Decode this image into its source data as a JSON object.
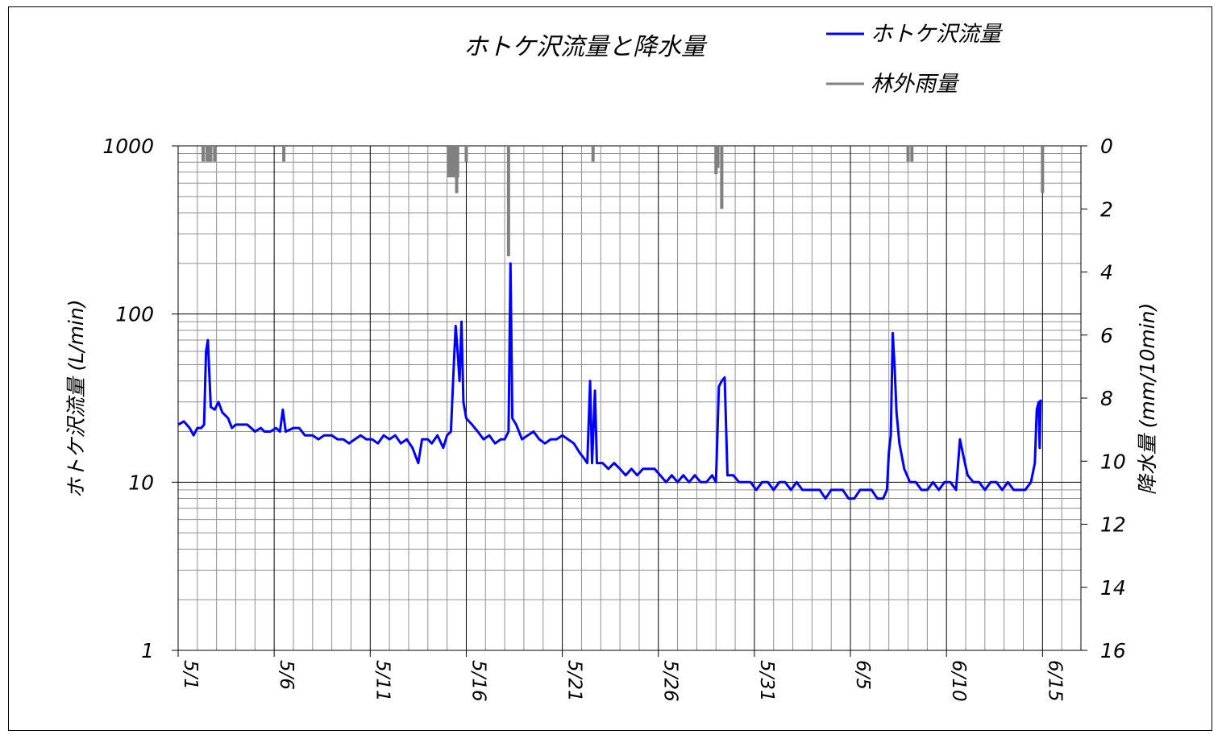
{
  "chart_data": {
    "type": "line",
    "title": "ホトケ沢流量と降水量",
    "y_left_label": "ホトケ沢流量 (L/min)",
    "y_right_label": "降水量 (mm/10min)",
    "y_left_scale": "log",
    "y_left_range": [
      1,
      1000
    ],
    "y_left_ticks": [
      "1",
      "10",
      "100",
      "1000"
    ],
    "y_right_range": [
      0,
      16
    ],
    "y_right_inverted": true,
    "y_right_ticks": [
      "0",
      "2",
      "4",
      "6",
      "8",
      "10",
      "12",
      "14",
      "16"
    ],
    "x_range": [
      "5/1",
      "6/17"
    ],
    "x_ticks": [
      "5/1",
      "5/6",
      "5/11",
      "5/16",
      "5/21",
      "5/26",
      "5/31",
      "6/5",
      "6/10",
      "6/15"
    ],
    "grid": true,
    "legend_position": "top-right",
    "series": [
      {
        "name": "ホトケ沢流量",
        "axis": "left",
        "color": "#0000ff",
        "points": [
          [
            0.0,
            22
          ],
          [
            0.3,
            23
          ],
          [
            0.6,
            21
          ],
          [
            0.8,
            19
          ],
          [
            1.0,
            21
          ],
          [
            1.2,
            21
          ],
          [
            1.35,
            22
          ],
          [
            1.45,
            60
          ],
          [
            1.55,
            70
          ],
          [
            1.7,
            28
          ],
          [
            1.9,
            27
          ],
          [
            2.1,
            30
          ],
          [
            2.3,
            26
          ],
          [
            2.6,
            24
          ],
          [
            2.8,
            21
          ],
          [
            3.0,
            22
          ],
          [
            3.3,
            22
          ],
          [
            3.6,
            22
          ],
          [
            3.8,
            21
          ],
          [
            4.0,
            20
          ],
          [
            4.3,
            21
          ],
          [
            4.5,
            20
          ],
          [
            4.8,
            20
          ],
          [
            5.1,
            21
          ],
          [
            5.3,
            20
          ],
          [
            5.45,
            27
          ],
          [
            5.6,
            20
          ],
          [
            6.0,
            21
          ],
          [
            6.3,
            21
          ],
          [
            6.6,
            19
          ],
          [
            7.0,
            19
          ],
          [
            7.3,
            18
          ],
          [
            7.6,
            19
          ],
          [
            8.0,
            19
          ],
          [
            8.3,
            18
          ],
          [
            8.6,
            18
          ],
          [
            8.9,
            17
          ],
          [
            9.2,
            18
          ],
          [
            9.5,
            19
          ],
          [
            9.8,
            18
          ],
          [
            10.1,
            18
          ],
          [
            10.4,
            17
          ],
          [
            10.7,
            19
          ],
          [
            11.0,
            18
          ],
          [
            11.3,
            19
          ],
          [
            11.6,
            17
          ],
          [
            11.9,
            18
          ],
          [
            12.2,
            16
          ],
          [
            12.5,
            13
          ],
          [
            12.7,
            18
          ],
          [
            13.0,
            18
          ],
          [
            13.2,
            17
          ],
          [
            13.5,
            19
          ],
          [
            13.8,
            16
          ],
          [
            14.0,
            19
          ],
          [
            14.2,
            20
          ],
          [
            14.35,
            50
          ],
          [
            14.45,
            85
          ],
          [
            14.55,
            60
          ],
          [
            14.65,
            40
          ],
          [
            14.75,
            90
          ],
          [
            14.85,
            30
          ],
          [
            15.0,
            24
          ],
          [
            15.3,
            22
          ],
          [
            15.6,
            20
          ],
          [
            15.9,
            18
          ],
          [
            16.2,
            19
          ],
          [
            16.5,
            17
          ],
          [
            16.8,
            18
          ],
          [
            17.0,
            18
          ],
          [
            17.2,
            20
          ],
          [
            17.3,
            200
          ],
          [
            17.4,
            24
          ],
          [
            17.6,
            22
          ],
          [
            17.9,
            18
          ],
          [
            18.2,
            19
          ],
          [
            18.5,
            20
          ],
          [
            18.8,
            18
          ],
          [
            19.1,
            17
          ],
          [
            19.4,
            18
          ],
          [
            19.7,
            18
          ],
          [
            20.0,
            19
          ],
          [
            20.3,
            18
          ],
          [
            20.6,
            17
          ],
          [
            20.9,
            15
          ],
          [
            21.1,
            14
          ],
          [
            21.3,
            13
          ],
          [
            21.45,
            40
          ],
          [
            21.55,
            13
          ],
          [
            21.7,
            35
          ],
          [
            21.8,
            13
          ],
          [
            22.1,
            13
          ],
          [
            22.4,
            12
          ],
          [
            22.7,
            13
          ],
          [
            23.0,
            12
          ],
          [
            23.3,
            11
          ],
          [
            23.6,
            12
          ],
          [
            23.9,
            11
          ],
          [
            24.2,
            12
          ],
          [
            24.5,
            12
          ],
          [
            24.8,
            12
          ],
          [
            25.1,
            11
          ],
          [
            25.4,
            10
          ],
          [
            25.7,
            11
          ],
          [
            26.0,
            10
          ],
          [
            26.3,
            11
          ],
          [
            26.6,
            10
          ],
          [
            26.9,
            11
          ],
          [
            27.2,
            10
          ],
          [
            27.5,
            10
          ],
          [
            27.8,
            11
          ],
          [
            28.0,
            10
          ],
          [
            28.15,
            37
          ],
          [
            28.3,
            40
          ],
          [
            28.45,
            42
          ],
          [
            28.6,
            11
          ],
          [
            28.9,
            11
          ],
          [
            29.2,
            10
          ],
          [
            29.5,
            10
          ],
          [
            29.8,
            10
          ],
          [
            30.1,
            9
          ],
          [
            30.4,
            10
          ],
          [
            30.7,
            10
          ],
          [
            31.0,
            9
          ],
          [
            31.3,
            10
          ],
          [
            31.6,
            10
          ],
          [
            31.9,
            9
          ],
          [
            32.2,
            10
          ],
          [
            32.5,
            9
          ],
          [
            32.8,
            9
          ],
          [
            33.1,
            9
          ],
          [
            33.4,
            9
          ],
          [
            33.7,
            8
          ],
          [
            34.0,
            9
          ],
          [
            34.3,
            9
          ],
          [
            34.6,
            9
          ],
          [
            34.9,
            8
          ],
          [
            35.2,
            8
          ],
          [
            35.5,
            9
          ],
          [
            35.8,
            9
          ],
          [
            36.1,
            9
          ],
          [
            36.4,
            8
          ],
          [
            36.7,
            8
          ],
          [
            36.9,
            9
          ],
          [
            37.0,
            15
          ],
          [
            37.1,
            19
          ],
          [
            37.2,
            77
          ],
          [
            37.3,
            48
          ],
          [
            37.4,
            26
          ],
          [
            37.55,
            17
          ],
          [
            37.8,
            12
          ],
          [
            38.1,
            10
          ],
          [
            38.4,
            10
          ],
          [
            38.7,
            9
          ],
          [
            39.0,
            9
          ],
          [
            39.3,
            10
          ],
          [
            39.6,
            9
          ],
          [
            39.9,
            10
          ],
          [
            40.2,
            10
          ],
          [
            40.5,
            9
          ],
          [
            40.7,
            18
          ],
          [
            40.9,
            14
          ],
          [
            41.1,
            11
          ],
          [
            41.4,
            10
          ],
          [
            41.7,
            10
          ],
          [
            42.0,
            9
          ],
          [
            42.3,
            10
          ],
          [
            42.6,
            10
          ],
          [
            42.9,
            9
          ],
          [
            43.2,
            10
          ],
          [
            43.5,
            9
          ],
          [
            43.8,
            9
          ],
          [
            44.1,
            9
          ],
          [
            44.4,
            10
          ],
          [
            44.6,
            13
          ],
          [
            44.7,
            27
          ],
          [
            44.8,
            30
          ],
          [
            44.85,
            16
          ],
          [
            44.9,
            31
          ]
        ]
      },
      {
        "name": "林外雨量",
        "axis": "right",
        "color": "#808080",
        "points": [
          [
            1.3,
            0.5
          ],
          [
            1.5,
            0.5
          ],
          [
            1.6,
            0.5
          ],
          [
            1.7,
            0.5
          ],
          [
            1.9,
            0.5
          ],
          [
            5.5,
            0.5
          ],
          [
            14.1,
            1.0
          ],
          [
            14.25,
            1.0
          ],
          [
            14.4,
            1.0
          ],
          [
            14.5,
            1.5
          ],
          [
            14.55,
            1.0
          ],
          [
            15.0,
            0.5
          ],
          [
            17.2,
            3.5
          ],
          [
            21.6,
            0.5
          ],
          [
            28.0,
            0.9
          ],
          [
            28.1,
            0.7
          ],
          [
            28.3,
            2.0
          ],
          [
            38.0,
            0.5
          ],
          [
            38.2,
            0.5
          ],
          [
            45.0,
            1.5
          ]
        ]
      }
    ]
  }
}
